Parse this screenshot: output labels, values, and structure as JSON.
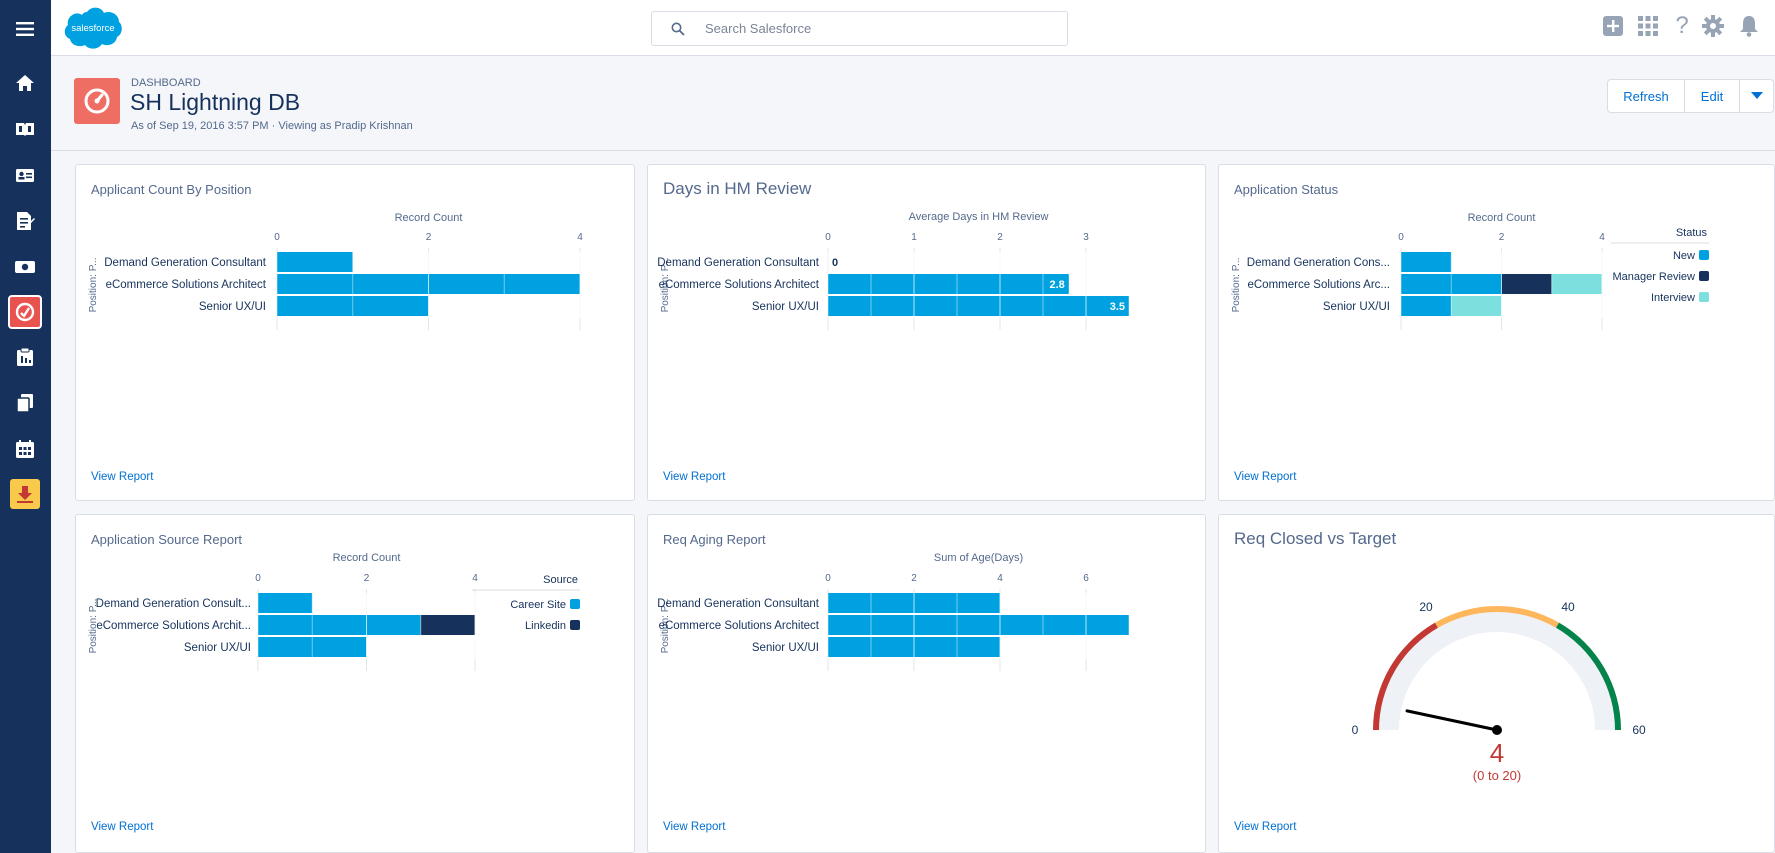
{
  "app": {
    "logo_text": "salesforce",
    "search_placeholder": "Search Salesforce"
  },
  "nav": {
    "items": [
      {
        "name": "menu-icon"
      },
      {
        "name": "home-icon"
      },
      {
        "name": "book-icon"
      },
      {
        "name": "contact-card-icon"
      },
      {
        "name": "report-icon"
      },
      {
        "name": "money-icon"
      },
      {
        "name": "dashboard-icon",
        "active": true
      },
      {
        "name": "clipboard-icon"
      },
      {
        "name": "files-icon"
      },
      {
        "name": "calendar-icon"
      },
      {
        "name": "download-icon"
      }
    ]
  },
  "topbar_icons": [
    "add-icon",
    "app-launcher-icon",
    "help-icon",
    "setup-gear-icon",
    "bell-icon"
  ],
  "header": {
    "eyebrow": "DASHBOARD",
    "title": "SH Lightning DB",
    "subtitle": "As of Sep 19, 2016 3:57 PM · Viewing as Pradip Krishnan",
    "buttons": {
      "refresh": "Refresh",
      "edit": "Edit"
    }
  },
  "colors": {
    "accent": "#0070d2",
    "bar": "#00a1e0",
    "navy": "#16325c",
    "teal": "#7ce0de",
    "dash_icon": "#ef6e64"
  },
  "chart_data": [
    {
      "id": "c1",
      "type": "bar",
      "title": "Applicant Count By Position",
      "xlabel": "Record Count",
      "ylabel": "Position: P...",
      "categories": [
        "Demand Generation Consultant",
        "eCommerce Solutions Architect",
        "Senior UX/UI"
      ],
      "xlim": [
        0,
        4
      ],
      "ticks": [
        0,
        2,
        4
      ],
      "series": [
        {
          "values": [
            1,
            4,
            2
          ]
        }
      ],
      "link": "View Report"
    },
    {
      "id": "c2",
      "type": "bar",
      "title": "Days in HM Review",
      "xlabel": "Average Days in HM Review",
      "ylabel": "Position: P...",
      "categories": [
        "Demand Generation Consultant",
        "eCommerce Solutions Architect",
        "Senior UX/UI"
      ],
      "xlim": [
        0,
        3.5
      ],
      "ticks": [
        0,
        1,
        2,
        3
      ],
      "series": [
        {
          "values": [
            0,
            2.8,
            3.5
          ]
        }
      ],
      "data_labels": [
        "0",
        "2.8",
        "3.5"
      ],
      "link": "View Report"
    },
    {
      "id": "c3",
      "type": "bar",
      "stacked": true,
      "title": "Application Status",
      "xlabel": "Record Count",
      "ylabel": "Position: P...",
      "categories": [
        "Demand Generation Cons...",
        "eCommerce Solutions Arc...",
        "Senior UX/UI"
      ],
      "xlim": [
        0,
        4
      ],
      "ticks": [
        0,
        2,
        4
      ],
      "legend": {
        "title": "Status",
        "position": "right"
      },
      "series": [
        {
          "name": "New",
          "color": "#00a1e0",
          "values": [
            1,
            2,
            1
          ]
        },
        {
          "name": "Manager Review",
          "color": "#16325c",
          "values": [
            0,
            1,
            0
          ]
        },
        {
          "name": "Interview",
          "color": "#7ce0de",
          "values": [
            0,
            1,
            1
          ]
        }
      ],
      "link": "View Report"
    },
    {
      "id": "c4",
      "type": "bar",
      "stacked": true,
      "title": "Application Source Report",
      "xlabel": "Record Count",
      "ylabel": "Position: P...",
      "categories": [
        "Demand Generation Consult...",
        "eCommerce Solutions Archit...",
        "Senior UX/UI"
      ],
      "xlim": [
        0,
        4
      ],
      "ticks": [
        0,
        2,
        4
      ],
      "legend": {
        "title": "Source",
        "position": "right"
      },
      "series": [
        {
          "name": "Career Site",
          "color": "#00a1e0",
          "values": [
            1,
            3,
            2
          ]
        },
        {
          "name": "Linkedin",
          "color": "#16325c",
          "values": [
            0,
            1,
            0
          ]
        }
      ],
      "link": "View Report"
    },
    {
      "id": "c5",
      "type": "bar",
      "title": "Req Aging Report",
      "xlabel": "Sum of Age(Days)",
      "ylabel": "Position: P...",
      "categories": [
        "Demand Generation Consultant",
        "eCommerce Solutions Architect",
        "Senior UX/UI"
      ],
      "xlim": [
        0,
        7
      ],
      "ticks": [
        0,
        2,
        4,
        6
      ],
      "series": [
        {
          "values": [
            4,
            7,
            4
          ]
        }
      ],
      "link": "View Report"
    },
    {
      "id": "c6",
      "type": "gauge",
      "title": "Req Closed vs Target",
      "min": 0,
      "max": 60,
      "value": 4,
      "value_label": "4",
      "range_label": "(0 to 20)",
      "bands": [
        {
          "from": 0,
          "to": 20,
          "color": "#c23934"
        },
        {
          "from": 20,
          "to": 40,
          "color": "#ffb75d"
        },
        {
          "from": 40,
          "to": 60,
          "color": "#04844b"
        }
      ],
      "tick_labels": [
        "0",
        "20",
        "40",
        "60"
      ],
      "link": "View Report"
    }
  ]
}
